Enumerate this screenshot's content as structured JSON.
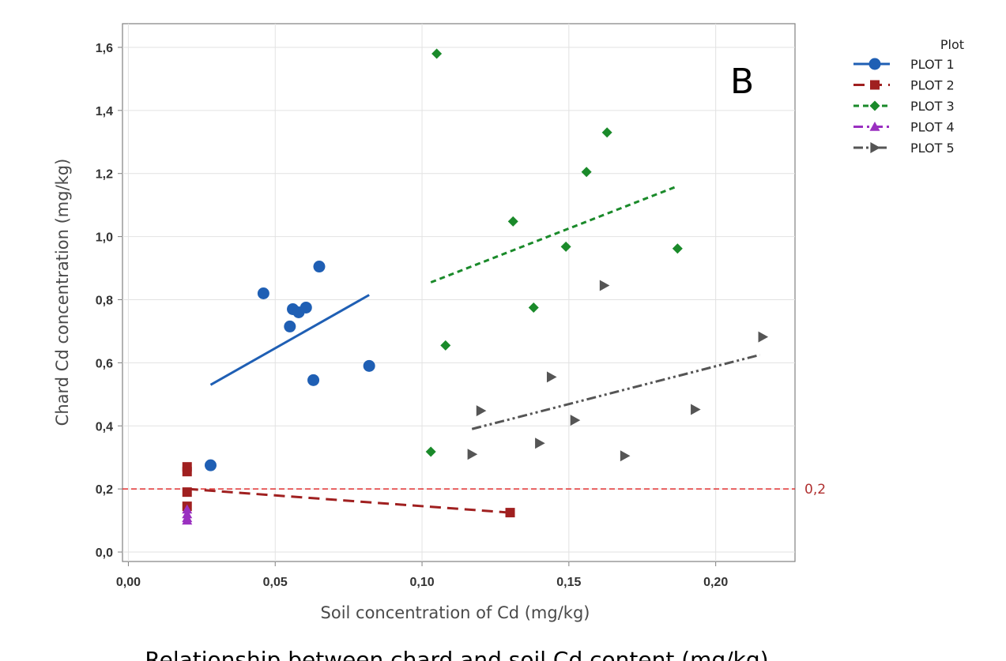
{
  "chart_data": {
    "type": "scatter",
    "panel_label": "B",
    "xlabel": "Soil concentration of Cd (mg/kg)",
    "ylabel": "Chard Cd concentration (mg/kg)",
    "caption": "Relationship between chard and soil Cd content (mg/kg)",
    "xlim": [
      -0.002,
      0.227
    ],
    "ylim": [
      -0.03,
      1.675
    ],
    "x_ticks": [
      0.0,
      0.05,
      0.1,
      0.15,
      0.2
    ],
    "x_tick_labels": [
      "0,00",
      "0,05",
      "0,10",
      "0,15",
      "0,20"
    ],
    "y_ticks": [
      0.0,
      0.2,
      0.4,
      0.6,
      0.8,
      1.0,
      1.2,
      1.4,
      1.6
    ],
    "y_tick_labels": [
      "0,0",
      "0,2",
      "0,4",
      "0,6",
      "0,8",
      "1,0",
      "1,2",
      "1,4",
      "1,6"
    ],
    "grid": true,
    "reference_line": {
      "y": 0.2,
      "label": "0,2",
      "color": "#e03030"
    },
    "legend": {
      "title": "Plot",
      "position": "top-right, outside plot"
    },
    "series": [
      {
        "name": "PLOT 1",
        "color": "#1f5fb4",
        "marker": "circle",
        "line": "solid",
        "points": [
          [
            0.028,
            0.275
          ],
          [
            0.046,
            0.82
          ],
          [
            0.055,
            0.715
          ],
          [
            0.056,
            0.77
          ],
          [
            0.058,
            0.76
          ],
          [
            0.0605,
            0.775
          ],
          [
            0.063,
            0.545
          ],
          [
            0.065,
            0.905
          ],
          [
            0.082,
            0.59
          ]
        ],
        "fit": [
          [
            0.028,
            0.53
          ],
          [
            0.082,
            0.815
          ]
        ]
      },
      {
        "name": "PLOT 2",
        "color": "#a02020",
        "marker": "square",
        "line": "dashed",
        "points": [
          [
            0.02,
            0.27
          ],
          [
            0.02,
            0.255
          ],
          [
            0.02,
            0.19
          ],
          [
            0.02,
            0.145
          ],
          [
            0.13,
            0.125
          ]
        ],
        "fit": [
          [
            0.02,
            0.2
          ],
          [
            0.13,
            0.125
          ]
        ]
      },
      {
        "name": "PLOT 3",
        "color": "#1a8a2a",
        "marker": "diamond",
        "line": "dotted",
        "points": [
          [
            0.103,
            0.318
          ],
          [
            0.105,
            1.58
          ],
          [
            0.108,
            0.655
          ],
          [
            0.131,
            1.048
          ],
          [
            0.138,
            0.775
          ],
          [
            0.149,
            0.968
          ],
          [
            0.156,
            1.205
          ],
          [
            0.163,
            1.33
          ],
          [
            0.187,
            0.962
          ]
        ],
        "fit": [
          [
            0.103,
            0.855
          ],
          [
            0.187,
            1.16
          ]
        ]
      },
      {
        "name": "PLOT 4",
        "color": "#9a30c0",
        "marker": "triangle",
        "line": "dashdot",
        "points": [
          [
            0.02,
            0.135
          ],
          [
            0.02,
            0.12
          ],
          [
            0.02,
            0.108
          ],
          [
            0.02,
            0.1
          ]
        ],
        "fit": []
      },
      {
        "name": "PLOT 5",
        "color": "#555555",
        "marker": "right-triangle",
        "line": "dashdotdot",
        "points": [
          [
            0.117,
            0.31
          ],
          [
            0.12,
            0.448
          ],
          [
            0.14,
            0.345
          ],
          [
            0.144,
            0.555
          ],
          [
            0.152,
            0.418
          ],
          [
            0.162,
            0.845
          ],
          [
            0.169,
            0.305
          ],
          [
            0.193,
            0.452
          ],
          [
            0.216,
            0.682
          ]
        ],
        "fit": [
          [
            0.117,
            0.39
          ],
          [
            0.215,
            0.625
          ]
        ]
      }
    ]
  }
}
